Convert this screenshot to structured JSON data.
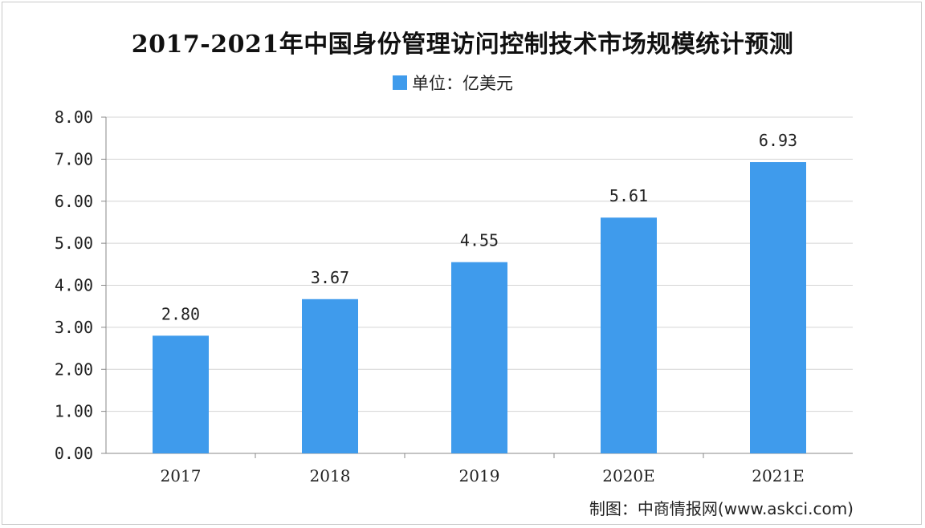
{
  "chart_data": {
    "type": "bar",
    "title": "2017-2021年中国身份管理访问控制技术市场规模统计预测",
    "legend": "单位：亿美元",
    "categories": [
      "2017",
      "2018",
      "2019",
      "2020E",
      "2021E"
    ],
    "values": [
      2.8,
      3.67,
      4.55,
      5.61,
      6.93
    ],
    "value_labels": [
      "2.80",
      "3.67",
      "4.55",
      "5.61",
      "6.93"
    ],
    "y_ticks": [
      "0.00",
      "1.00",
      "2.00",
      "3.00",
      "4.00",
      "5.00",
      "6.00",
      "7.00",
      "8.00"
    ],
    "ylim": [
      0,
      8
    ],
    "grid": true,
    "bar_color": "#3f9bec",
    "legend_placement": "top-center"
  },
  "source": "制图：中商情报网(www.askci.com)"
}
